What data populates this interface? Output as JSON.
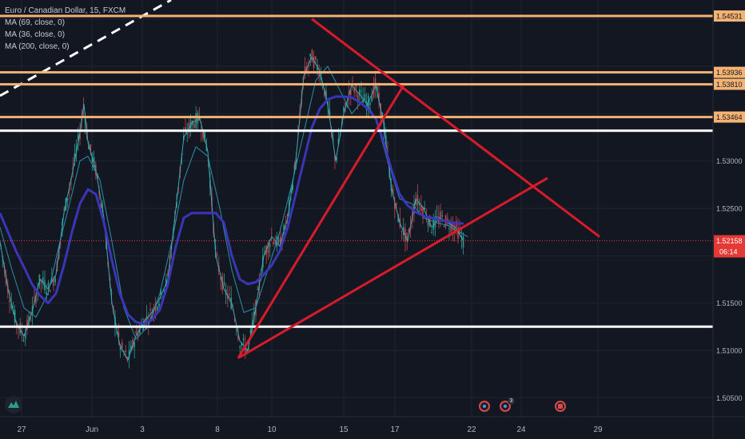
{
  "legend": {
    "symbol": "Euro / Canadian Dollar, 15, FXCM",
    "ma1": "MA (69, close, 0)",
    "ma2": "MA (36, close, 0)",
    "ma3": "MA (200, close, 0)"
  },
  "price_tags": {
    "level1": "1.54531",
    "level2": "1.53936",
    "level3": "1.53810",
    "level4": "1.53464",
    "current": "1.52158",
    "countdown": "06:14"
  },
  "colors": {
    "background": "#131722",
    "grid": "#1f2430",
    "axis_text": "#b2b5be",
    "resistance": "#f5b373",
    "support": "#ffffff",
    "trendline": "#d81b2a",
    "ma200": "#3b35b8",
    "ma_fast": "#3ea6b4",
    "candle_up": "#2a9d8f",
    "candle_down": "#c1454a",
    "current_tag": "#e53935"
  },
  "chart_data": {
    "type": "line",
    "title": "",
    "ylabel": "",
    "ylim": [
      1.503,
      1.547
    ],
    "y_ticks": [
      "1.54531",
      "1.53936",
      "1.53810",
      "1.53464",
      "1.53000",
      "1.52500",
      "1.52158",
      "1.51500",
      "1.51000",
      "1.50500"
    ],
    "x_ticks": [
      "27",
      "Jun",
      "3",
      "8",
      "10",
      "15",
      "17",
      "22",
      "24",
      "29"
    ],
    "series": [
      {
        "x": [
          0,
          10,
          20,
          30,
          40,
          50,
          60,
          70,
          80,
          90,
          100,
          110,
          120,
          130,
          140,
          150,
          160,
          170,
          180,
          190,
          200,
          210,
          220,
          230,
          240,
          250,
          260,
          270,
          280,
          290,
          300,
          310,
          320,
          330,
          340,
          350,
          360,
          370,
          380,
          390,
          400,
          410,
          420,
          430,
          440,
          450,
          460,
          470,
          480,
          490,
          500,
          510,
          520,
          530,
          540,
          550,
          560,
          570,
          580
        ],
        "values": [
          1.5245,
          1.5225,
          1.5205,
          1.5188,
          1.517,
          1.5158,
          1.515,
          1.516,
          1.519,
          1.5225,
          1.5255,
          1.527,
          1.5265,
          1.5235,
          1.5195,
          1.516,
          1.5138,
          1.513,
          1.5128,
          1.5132,
          1.5143,
          1.517,
          1.521,
          1.524,
          1.5245,
          1.5245,
          1.5245,
          1.5245,
          1.5235,
          1.52,
          1.5175,
          1.517,
          1.5172,
          1.518,
          1.519,
          1.5205,
          1.523,
          1.5265,
          1.53,
          1.5335,
          1.5355,
          1.5365,
          1.5368,
          1.5368,
          1.5367,
          1.5362,
          1.5355,
          1.5345,
          1.532,
          1.529,
          1.5265,
          1.5253,
          1.5246,
          1.5242,
          1.524,
          1.5238,
          1.5236,
          1.5234,
          1.5234
        ]
      },
      {
        "x": [
          0,
          15,
          30,
          45,
          60,
          75,
          90,
          100,
          110,
          125,
          140,
          155,
          170,
          185,
          200,
          215,
          230,
          245,
          260,
          275,
          290,
          305,
          320,
          335,
          350,
          365,
          380,
          395,
          410,
          425,
          440,
          455,
          470,
          485,
          500,
          515,
          530,
          545,
          560,
          575,
          585
        ],
        "values": [
          1.523,
          1.5185,
          1.5145,
          1.5135,
          1.516,
          1.5215,
          1.5265,
          1.53,
          1.5305,
          1.528,
          1.5215,
          1.5145,
          1.5112,
          1.5125,
          1.516,
          1.5215,
          1.528,
          1.5315,
          1.5305,
          1.525,
          1.5185,
          1.514,
          1.5145,
          1.5185,
          1.5225,
          1.5275,
          1.533,
          1.5385,
          1.54,
          1.5375,
          1.535,
          1.5365,
          1.5345,
          1.53,
          1.526,
          1.5255,
          1.524,
          1.5235,
          1.5232,
          1.5225,
          1.522
        ]
      },
      {
        "x": [
          0,
          10,
          20,
          30,
          40,
          50,
          60,
          70,
          80,
          90,
          100,
          105,
          110,
          120,
          130,
          140,
          150,
          160,
          170,
          180,
          190,
          200,
          210,
          220,
          230,
          240,
          250,
          260,
          270,
          280,
          290,
          300,
          310,
          320,
          330,
          340,
          350,
          360,
          370,
          380,
          390,
          400,
          410,
          420,
          430,
          440,
          450,
          460,
          470,
          480,
          490,
          500,
          510,
          520,
          530,
          540,
          550,
          560,
          570,
          580
        ],
        "values": [
          1.5215,
          1.5165,
          1.513,
          1.5115,
          1.514,
          1.5175,
          1.5165,
          1.518,
          1.5245,
          1.5285,
          1.533,
          1.536,
          1.532,
          1.529,
          1.524,
          1.515,
          1.5105,
          1.509,
          1.5115,
          1.513,
          1.514,
          1.5155,
          1.5175,
          1.525,
          1.5325,
          1.534,
          1.5345,
          1.531,
          1.52,
          1.5165,
          1.515,
          1.511,
          1.51,
          1.5145,
          1.52,
          1.522,
          1.521,
          1.524,
          1.53,
          1.539,
          1.541,
          1.5395,
          1.536,
          1.53,
          1.535,
          1.538,
          1.537,
          1.536,
          1.538,
          1.534,
          1.527,
          1.5235,
          1.5215,
          1.526,
          1.525,
          1.523,
          1.524,
          1.5235,
          1.523,
          1.5215
        ]
      }
    ],
    "candles_note": "",
    "horizontal_levels": [
      {
        "value": 1.54531,
        "color": "resistance"
      },
      {
        "value": 1.53936,
        "color": "resistance"
      },
      {
        "value": 1.5381,
        "color": "resistance"
      },
      {
        "value": 1.53464,
        "color": "resistance"
      },
      {
        "value": 1.5332,
        "color": "support"
      },
      {
        "value": 1.5125,
        "color": "support"
      }
    ],
    "trendlines": [
      {
        "x1": 298,
        "y1": 1.5092,
        "x2": 685,
        "y2": 1.5282
      },
      {
        "x1": 298,
        "y1": 1.5092,
        "x2": 505,
        "y2": 1.538
      },
      {
        "x1": 390,
        "y1": 1.545,
        "x2": 750,
        "y2": 1.522
      }
    ],
    "current_price": 1.52158
  }
}
